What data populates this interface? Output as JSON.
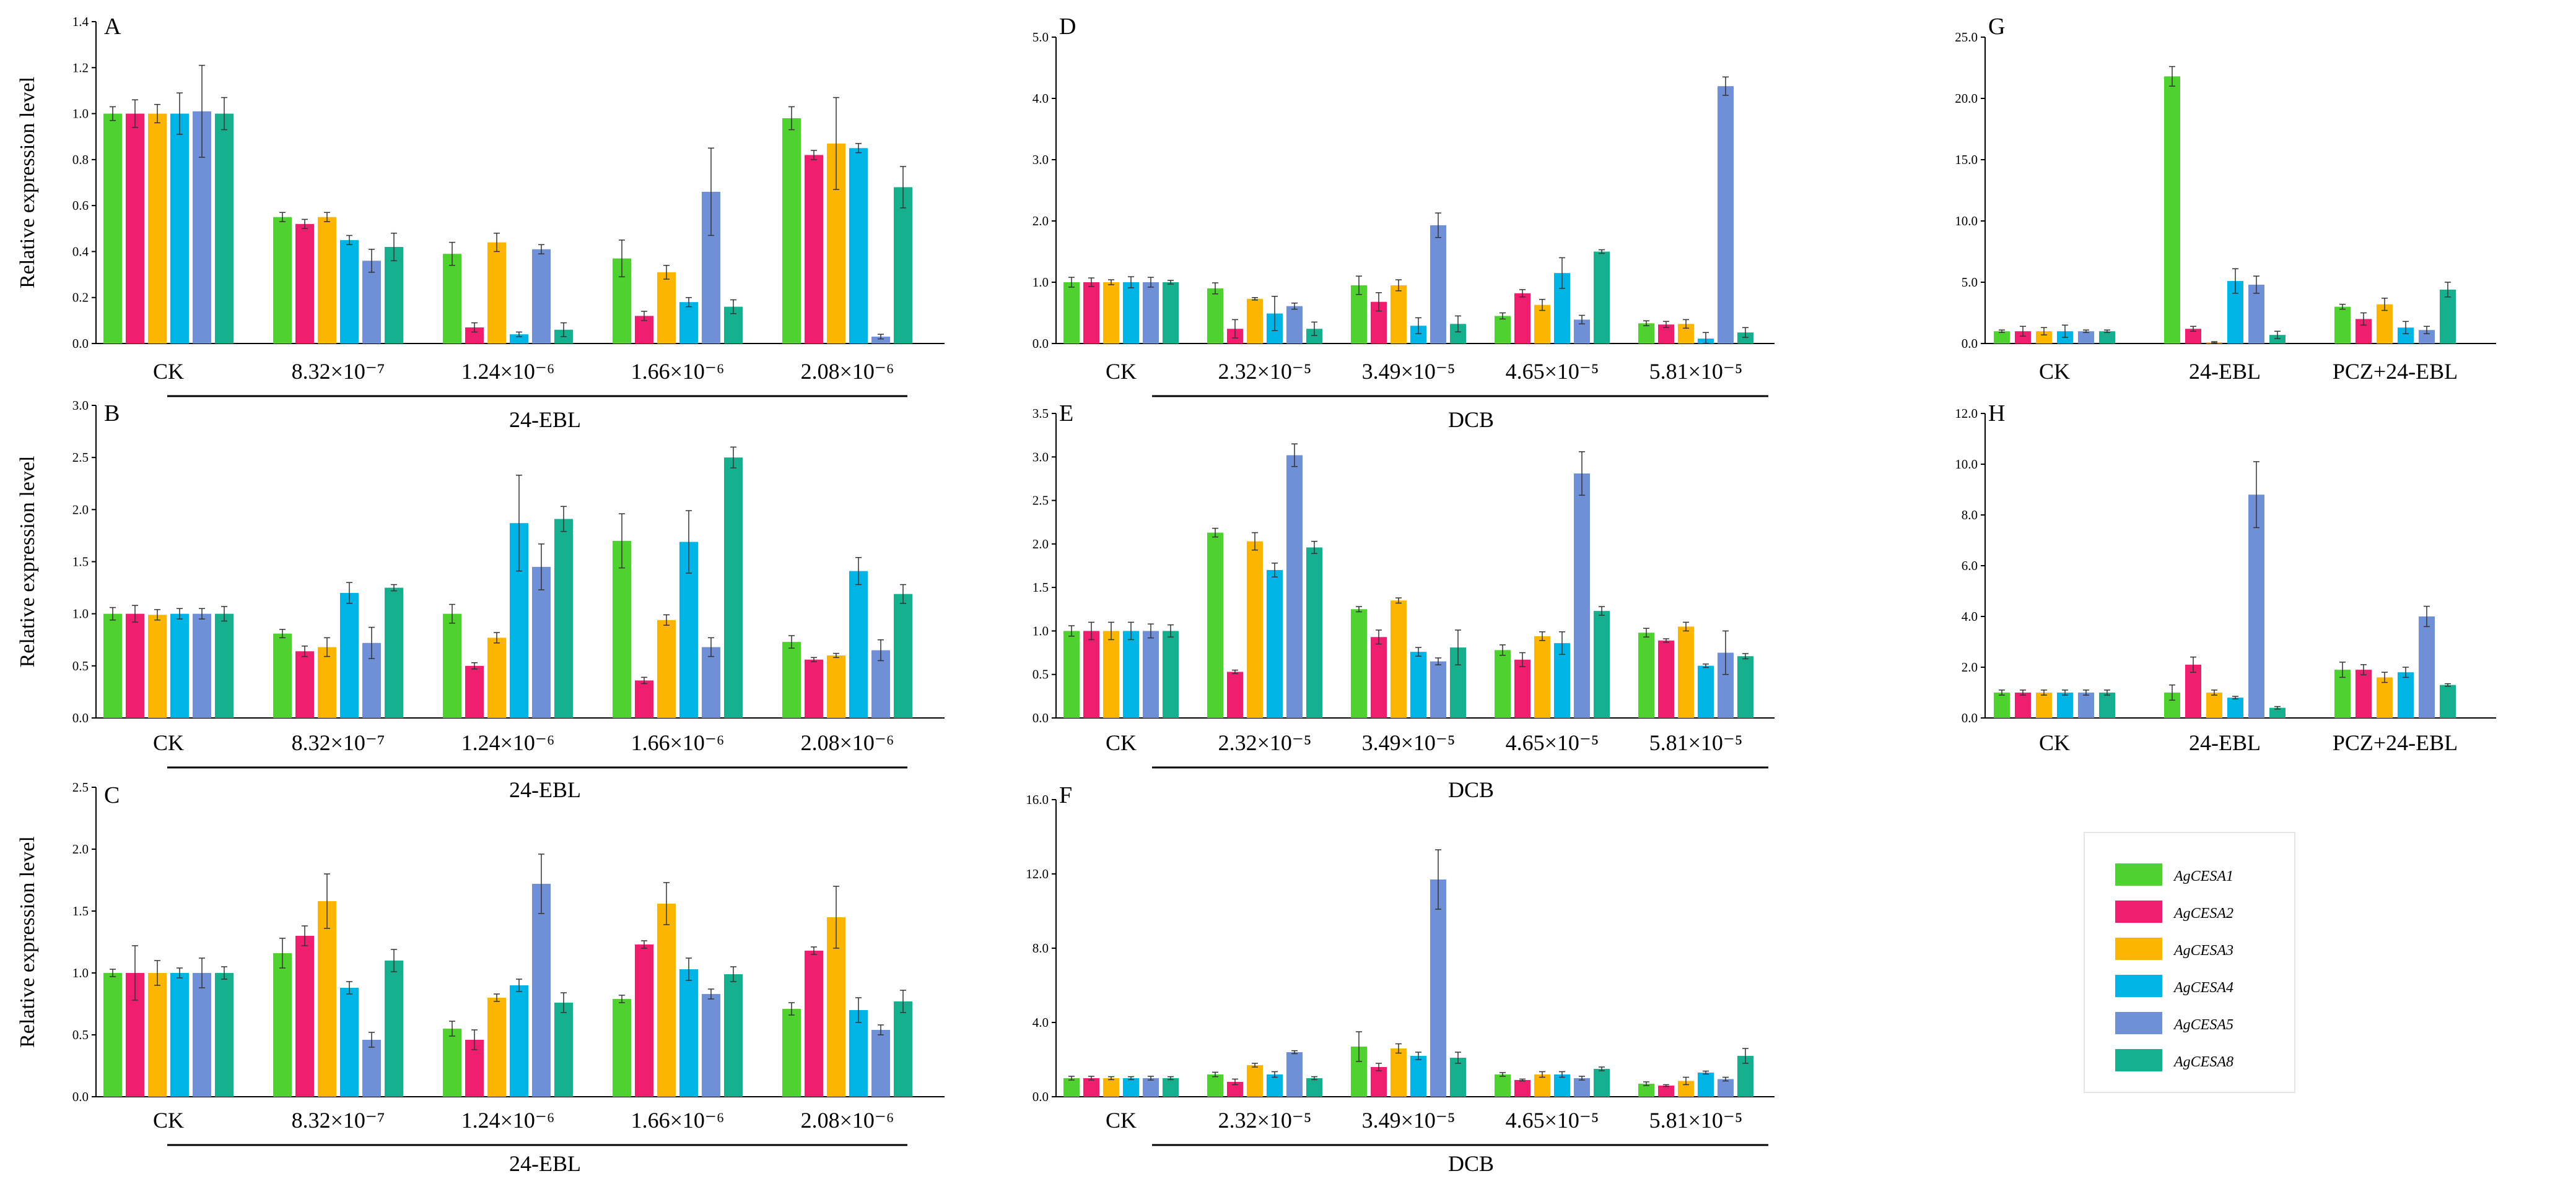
{
  "figure": {
    "series": [
      {
        "name": "AgCESA1",
        "color": "#4fd12f"
      },
      {
        "name": "AgCESA2",
        "color": "#f01e6e"
      },
      {
        "name": "AgCESA3",
        "color": "#fcb500"
      },
      {
        "name": "AgCESA4",
        "color": "#00b4e6"
      },
      {
        "name": "AgCESA5",
        "color": "#6f8fd6"
      },
      {
        "name": "AgCESA8",
        "color": "#17b08e"
      }
    ]
  },
  "chart_data": [
    {
      "panel": "A",
      "type": "bar",
      "ylabel": "Relative expression level",
      "ylim": [
        0,
        1.4
      ],
      "yticks": [
        "0.0",
        "0.2",
        "0.4",
        "0.6",
        "0.8",
        "1.0",
        "1.2",
        "1.4"
      ],
      "categories": [
        "CK",
        "8.32×10⁻⁷",
        "1.24×10⁻⁶",
        "1.66×10⁻⁶",
        "2.08×10⁻⁶"
      ],
      "group_label": "24-EBL",
      "series": [
        {
          "name": "AgCESA1",
          "values": [
            1.0,
            0.55,
            0.39,
            0.37,
            0.98
          ],
          "errors": [
            0.03,
            0.02,
            0.05,
            0.08,
            0.05
          ]
        },
        {
          "name": "AgCESA2",
          "values": [
            1.0,
            0.52,
            0.07,
            0.12,
            0.82
          ],
          "errors": [
            0.06,
            0.02,
            0.02,
            0.02,
            0.02
          ]
        },
        {
          "name": "AgCESA3",
          "values": [
            1.0,
            0.55,
            0.44,
            0.31,
            0.87
          ],
          "errors": [
            0.04,
            0.02,
            0.04,
            0.03,
            0.2
          ]
        },
        {
          "name": "AgCESA4",
          "values": [
            1.0,
            0.45,
            0.04,
            0.18,
            0.85
          ],
          "errors": [
            0.09,
            0.02,
            0.01,
            0.02,
            0.02
          ]
        },
        {
          "name": "AgCESA5",
          "values": [
            1.01,
            0.36,
            0.41,
            0.66,
            0.03
          ],
          "errors": [
            0.2,
            0.05,
            0.02,
            0.19,
            0.01
          ]
        },
        {
          "name": "AgCESA8",
          "values": [
            1.0,
            0.42,
            0.06,
            0.16,
            0.68
          ],
          "errors": [
            0.07,
            0.06,
            0.03,
            0.03,
            0.09
          ]
        }
      ]
    },
    {
      "panel": "B",
      "type": "bar",
      "ylabel": "Relative expression level",
      "ylim": [
        0,
        3.0
      ],
      "yticks": [
        "0.0",
        "0.5",
        "1.0",
        "1.5",
        "2.0",
        "2.5",
        "3.0"
      ],
      "categories": [
        "CK",
        "8.32×10⁻⁷",
        "1.24×10⁻⁶",
        "1.66×10⁻⁶",
        "2.08×10⁻⁶"
      ],
      "group_label": "24-EBL",
      "series": [
        {
          "name": "AgCESA1",
          "values": [
            1.0,
            0.81,
            1.0,
            1.7,
            0.73
          ],
          "errors": [
            0.06,
            0.04,
            0.09,
            0.26,
            0.06
          ]
        },
        {
          "name": "AgCESA2",
          "values": [
            1.0,
            0.64,
            0.5,
            0.36,
            0.56
          ],
          "errors": [
            0.08,
            0.05,
            0.03,
            0.03,
            0.02
          ]
        },
        {
          "name": "AgCESA3",
          "values": [
            0.99,
            0.68,
            0.77,
            0.94,
            0.6
          ],
          "errors": [
            0.05,
            0.09,
            0.05,
            0.05,
            0.02
          ]
        },
        {
          "name": "AgCESA4",
          "values": [
            1.0,
            1.2,
            1.87,
            1.69,
            1.41
          ],
          "errors": [
            0.05,
            0.1,
            0.46,
            0.3,
            0.13
          ]
        },
        {
          "name": "AgCESA5",
          "values": [
            1.0,
            0.72,
            1.45,
            0.68,
            0.65
          ],
          "errors": [
            0.05,
            0.15,
            0.22,
            0.09,
            0.1
          ]
        },
        {
          "name": "AgCESA8",
          "values": [
            1.0,
            1.25,
            1.91,
            2.5,
            1.19
          ],
          "errors": [
            0.07,
            0.03,
            0.12,
            0.1,
            0.09
          ]
        }
      ]
    },
    {
      "panel": "C",
      "type": "bar",
      "ylabel": "Relative expression level",
      "ylim": [
        0,
        2.5
      ],
      "yticks": [
        "0.0",
        "0.5",
        "1.0",
        "1.5",
        "2.0",
        "2.5"
      ],
      "categories": [
        "CK",
        "8.32×10⁻⁷",
        "1.24×10⁻⁶",
        "1.66×10⁻⁶",
        "2.08×10⁻⁶"
      ],
      "group_label": "24-EBL",
      "series": [
        {
          "name": "AgCESA1",
          "values": [
            1.0,
            1.16,
            0.55,
            0.79,
            0.71
          ],
          "errors": [
            0.03,
            0.12,
            0.06,
            0.03,
            0.05
          ]
        },
        {
          "name": "AgCESA2",
          "values": [
            1.0,
            1.3,
            0.46,
            1.23,
            1.18
          ],
          "errors": [
            0.22,
            0.08,
            0.08,
            0.03,
            0.03
          ]
        },
        {
          "name": "AgCESA3",
          "values": [
            1.0,
            1.58,
            0.8,
            1.56,
            1.45
          ],
          "errors": [
            0.1,
            0.22,
            0.03,
            0.17,
            0.25
          ]
        },
        {
          "name": "AgCESA4",
          "values": [
            1.0,
            0.88,
            0.9,
            1.03,
            0.7
          ],
          "errors": [
            0.04,
            0.05,
            0.05,
            0.09,
            0.1
          ]
        },
        {
          "name": "AgCESA5",
          "values": [
            1.0,
            0.46,
            1.72,
            0.83,
            0.54
          ],
          "errors": [
            0.12,
            0.06,
            0.24,
            0.04,
            0.04
          ]
        },
        {
          "name": "AgCESA8",
          "values": [
            1.0,
            1.1,
            0.76,
            0.99,
            0.77
          ],
          "errors": [
            0.05,
            0.09,
            0.08,
            0.06,
            0.09
          ]
        }
      ]
    },
    {
      "panel": "D",
      "type": "bar",
      "ylabel": "",
      "ylim": [
        0,
        5.0
      ],
      "yticks": [
        "0.0",
        "1.0",
        "2.0",
        "3.0",
        "4.0",
        "5.0"
      ],
      "categories": [
        "CK",
        "2.32×10⁻⁵",
        "3.49×10⁻⁵",
        "4.65×10⁻⁵",
        "5.81×10⁻⁵"
      ],
      "group_label": "DCB",
      "series": [
        {
          "name": "AgCESA1",
          "values": [
            1.0,
            0.9,
            0.95,
            0.45,
            0.33
          ],
          "errors": [
            0.08,
            0.09,
            0.15,
            0.05,
            0.04
          ]
        },
        {
          "name": "AgCESA2",
          "values": [
            1.0,
            0.24,
            0.68,
            0.82,
            0.31
          ],
          "errors": [
            0.07,
            0.15,
            0.15,
            0.06,
            0.05
          ]
        },
        {
          "name": "AgCESA3",
          "values": [
            1.0,
            0.73,
            0.95,
            0.63,
            0.32
          ],
          "errors": [
            0.04,
            0.02,
            0.09,
            0.09,
            0.07
          ]
        },
        {
          "name": "AgCESA4",
          "values": [
            1.0,
            0.49,
            0.29,
            1.15,
            0.08
          ],
          "errors": [
            0.09,
            0.28,
            0.13,
            0.25,
            0.1
          ]
        },
        {
          "name": "AgCESA5",
          "values": [
            1.0,
            0.61,
            1.93,
            0.39,
            4.2
          ],
          "errors": [
            0.08,
            0.05,
            0.2,
            0.07,
            0.15
          ]
        },
        {
          "name": "AgCESA8",
          "values": [
            1.0,
            0.24,
            0.32,
            1.5,
            0.18
          ],
          "errors": [
            0.03,
            0.11,
            0.13,
            0.03,
            0.08
          ]
        }
      ]
    },
    {
      "panel": "E",
      "type": "bar",
      "ylabel": "",
      "ylim": [
        0,
        3.5
      ],
      "yticks": [
        "0.0",
        "0.5",
        "1.0",
        "1.5",
        "2.0",
        "2.5",
        "3.0",
        "3.5"
      ],
      "categories": [
        "CK",
        "2.32×10⁻⁵",
        "3.49×10⁻⁵",
        "4.65×10⁻⁵",
        "5.81×10⁻⁵"
      ],
      "group_label": "DCB",
      "series": [
        {
          "name": "AgCESA1",
          "values": [
            1.0,
            2.13,
            1.25,
            0.78,
            0.98
          ],
          "errors": [
            0.06,
            0.05,
            0.03,
            0.06,
            0.05
          ]
        },
        {
          "name": "AgCESA2",
          "values": [
            1.0,
            0.53,
            0.93,
            0.67,
            0.89
          ],
          "errors": [
            0.1,
            0.02,
            0.08,
            0.08,
            0.02
          ]
        },
        {
          "name": "AgCESA3",
          "values": [
            1.0,
            2.03,
            1.35,
            0.94,
            1.05
          ],
          "errors": [
            0.1,
            0.1,
            0.03,
            0.05,
            0.05
          ]
        },
        {
          "name": "AgCESA4",
          "values": [
            1.0,
            1.7,
            0.76,
            0.86,
            0.6
          ],
          "errors": [
            0.1,
            0.08,
            0.05,
            0.13,
            0.02
          ]
        },
        {
          "name": "AgCESA5",
          "values": [
            1.0,
            3.02,
            0.65,
            2.81,
            0.75
          ],
          "errors": [
            0.08,
            0.13,
            0.04,
            0.25,
            0.25
          ]
        },
        {
          "name": "AgCESA8",
          "values": [
            1.0,
            1.96,
            0.81,
            1.23,
            0.71
          ],
          "errors": [
            0.07,
            0.07,
            0.2,
            0.05,
            0.03
          ]
        }
      ]
    },
    {
      "panel": "F",
      "type": "bar",
      "ylabel": "",
      "ylim": [
        0,
        16.0
      ],
      "yticks": [
        "0.0",
        "4.0",
        "8.0",
        "12.0",
        "16.0"
      ],
      "categories": [
        "CK",
        "2.32×10⁻⁵",
        "3.49×10⁻⁵",
        "4.65×10⁻⁵",
        "5.81×10⁻⁵"
      ],
      "group_label": "DCB",
      "series": [
        {
          "name": "AgCESA1",
          "values": [
            1.0,
            1.2,
            2.7,
            1.2,
            0.7
          ],
          "errors": [
            0.1,
            0.12,
            0.8,
            0.1,
            0.1
          ]
        },
        {
          "name": "AgCESA2",
          "values": [
            1.0,
            0.8,
            1.6,
            0.9,
            0.6
          ],
          "errors": [
            0.1,
            0.15,
            0.2,
            0.05,
            0.05
          ]
        },
        {
          "name": "AgCESA3",
          "values": [
            1.0,
            1.7,
            2.6,
            1.2,
            0.85
          ],
          "errors": [
            0.08,
            0.1,
            0.25,
            0.15,
            0.2
          ]
        },
        {
          "name": "AgCESA4",
          "values": [
            1.0,
            1.2,
            2.2,
            1.2,
            1.3
          ],
          "errors": [
            0.08,
            0.15,
            0.2,
            0.15,
            0.08
          ]
        },
        {
          "name": "AgCESA5",
          "values": [
            1.0,
            2.4,
            11.7,
            1.0,
            0.95
          ],
          "errors": [
            0.1,
            0.08,
            1.6,
            0.1,
            0.1
          ]
        },
        {
          "name": "AgCESA8",
          "values": [
            1.0,
            1.0,
            2.1,
            1.5,
            2.2
          ],
          "errors": [
            0.08,
            0.08,
            0.3,
            0.1,
            0.4
          ]
        }
      ]
    },
    {
      "panel": "G",
      "type": "bar",
      "ylabel": "",
      "ylim": [
        0,
        25.0
      ],
      "yticks": [
        "0.0",
        "5.0",
        "10.0",
        "15.0",
        "20.0",
        "25.0"
      ],
      "categories": [
        "CK",
        "24-EBL",
        "PCZ+24-EBL"
      ],
      "group_label": "",
      "series": [
        {
          "name": "AgCESA1",
          "values": [
            1.0,
            21.8,
            3.0
          ],
          "errors": [
            0.1,
            0.8,
            0.2
          ]
        },
        {
          "name": "AgCESA2",
          "values": [
            1.0,
            1.2,
            2.0
          ],
          "errors": [
            0.4,
            0.2,
            0.5
          ]
        },
        {
          "name": "AgCESA3",
          "values": [
            1.0,
            0.1,
            3.2
          ],
          "errors": [
            0.3,
            0.05,
            0.5
          ]
        },
        {
          "name": "AgCESA4",
          "values": [
            1.0,
            5.1,
            1.3
          ],
          "errors": [
            0.5,
            1.0,
            0.5
          ]
        },
        {
          "name": "AgCESA5",
          "values": [
            1.0,
            4.8,
            1.1
          ],
          "errors": [
            0.1,
            0.7,
            0.3
          ]
        },
        {
          "name": "AgCESA8",
          "values": [
            1.0,
            0.7,
            4.4
          ],
          "errors": [
            0.1,
            0.3,
            0.6
          ]
        }
      ]
    },
    {
      "panel": "H",
      "type": "bar",
      "ylabel": "",
      "ylim": [
        0,
        12.0
      ],
      "yticks": [
        "0.0",
        "2.0",
        "4.0",
        "6.0",
        "8.0",
        "10.0",
        "12.0"
      ],
      "categories": [
        "CK",
        "24-EBL",
        "PCZ+24-EBL"
      ],
      "group_label": "",
      "series": [
        {
          "name": "AgCESA1",
          "values": [
            1.0,
            1.0,
            1.9
          ],
          "errors": [
            0.1,
            0.3,
            0.3
          ]
        },
        {
          "name": "AgCESA2",
          "values": [
            1.0,
            2.1,
            1.9
          ],
          "errors": [
            0.1,
            0.3,
            0.2
          ]
        },
        {
          "name": "AgCESA3",
          "values": [
            1.0,
            1.0,
            1.6
          ],
          "errors": [
            0.1,
            0.1,
            0.2
          ]
        },
        {
          "name": "AgCESA4",
          "values": [
            1.0,
            0.8,
            1.8
          ],
          "errors": [
            0.1,
            0.05,
            0.2
          ]
        },
        {
          "name": "AgCESA5",
          "values": [
            1.0,
            8.8,
            4.0
          ],
          "errors": [
            0.1,
            1.3,
            0.4
          ]
        },
        {
          "name": "AgCESA8",
          "values": [
            1.0,
            0.4,
            1.3
          ],
          "errors": [
            0.1,
            0.05,
            0.05
          ]
        }
      ]
    }
  ]
}
